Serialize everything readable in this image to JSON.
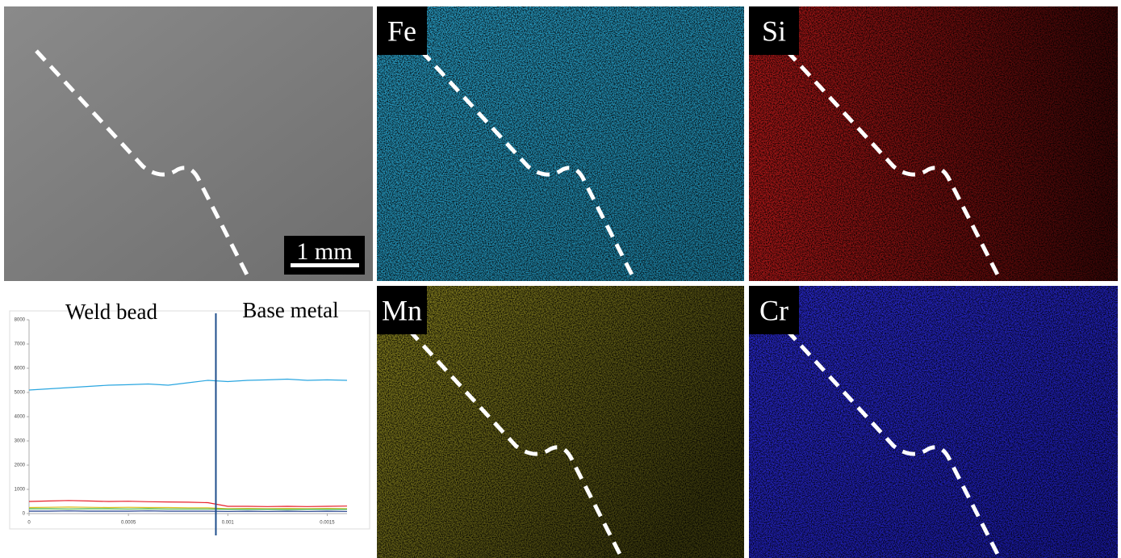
{
  "panels": [
    "Fe",
    "Si",
    "Mn",
    "Cr"
  ],
  "scale_bar": "1 mm",
  "chart_data": {
    "type": "line",
    "annotations": [
      "Weld bead",
      "Base metal"
    ],
    "x": [
      0,
      0.0001,
      0.0002,
      0.0003,
      0.0004,
      0.0005,
      0.0006,
      0.0007,
      0.0008,
      0.0009,
      0.001,
      0.0011,
      0.0012,
      0.0013,
      0.0014,
      0.0015,
      0.0016
    ],
    "series": [
      {
        "color": "#2aa6e0",
        "values": [
          5100,
          5150,
          5200,
          5250,
          5300,
          5320,
          5350,
          5300,
          5400,
          5500,
          5450,
          5500,
          5520,
          5550,
          5500,
          5520,
          5500
        ]
      },
      {
        "color": "#e8202a",
        "values": [
          500,
          520,
          540,
          520,
          500,
          510,
          490,
          480,
          470,
          450,
          300,
          300,
          290,
          300,
          290,
          300,
          310
        ]
      },
      {
        "color": "#e0c020",
        "values": [
          250,
          260,
          270,
          260,
          250,
          260,
          250,
          250,
          240,
          240,
          200,
          210,
          200,
          210,
          200,
          210,
          200
        ]
      },
      {
        "color": "#40b040",
        "values": [
          200,
          200,
          190,
          200,
          200,
          190,
          200,
          190,
          190,
          190,
          180,
          180,
          180,
          170,
          180,
          180,
          180
        ]
      },
      {
        "color": "#1f3d8a",
        "values": [
          100,
          100,
          110,
          100,
          100,
          100,
          110,
          100,
          100,
          100,
          90,
          100,
          90,
          100,
          90,
          100,
          90
        ]
      }
    ],
    "xlim": [
      0,
      0.0016
    ],
    "ylim": [
      0,
      8000
    ],
    "xticks": [
      0,
      0.0005,
      0.001,
      0.0015
    ],
    "yticks": [
      0,
      1000,
      2000,
      3000,
      4000,
      5000,
      6000,
      7000,
      8000
    ],
    "divider_x": 0.00094
  }
}
